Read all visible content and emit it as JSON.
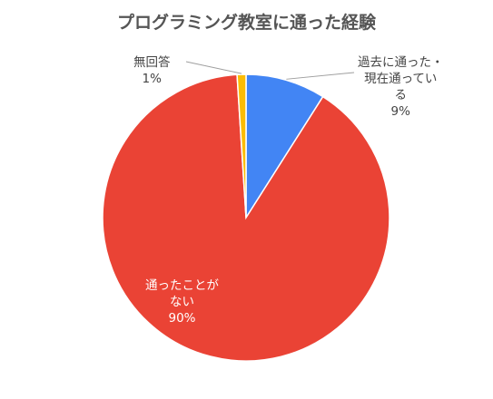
{
  "chart_data": {
    "type": "pie",
    "title": "プログラミング教室に通った経験",
    "slices": [
      {
        "label": "過去に通った・現在通っている",
        "label_lines": [
          "過去に通った・",
          "現在通ってい",
          "る"
        ],
        "value": 9,
        "pct_label": "9%",
        "color": "#4285F4"
      },
      {
        "label": "通ったことがない",
        "label_lines": [
          "通ったことが",
          "ない"
        ],
        "value": 90,
        "pct_label": "90%",
        "color": "#EA4335"
      },
      {
        "label": "無回答",
        "label_lines": [
          "無回答"
        ],
        "value": 1,
        "pct_label": "1%",
        "color": "#FBBC04"
      }
    ]
  }
}
